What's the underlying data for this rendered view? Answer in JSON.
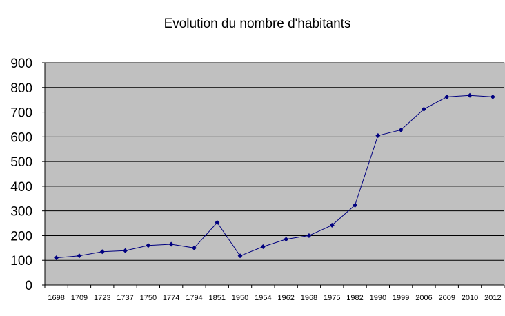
{
  "chart_data": {
    "type": "line",
    "title": "Evolution du nombre d'habitants",
    "xlabel": "",
    "ylabel": "",
    "ylim": [
      0,
      900
    ],
    "yticks": [
      "0",
      "100",
      "200",
      "300",
      "400",
      "500",
      "600",
      "700",
      "800",
      "900"
    ],
    "grid": true,
    "legend": "none",
    "categories": [
      "1698",
      "1709",
      "1723",
      "1737",
      "1750",
      "1774",
      "1794",
      "1851",
      "1950",
      "1954",
      "1962",
      "1968",
      "1975",
      "1982",
      "1990",
      "1999",
      "2006",
      "2009",
      "2010",
      "2012"
    ],
    "series": [
      {
        "values": [
          110,
          118,
          135,
          139,
          160,
          165,
          150,
          253,
          118,
          155,
          185,
          200,
          242,
          323,
          605,
          628,
          712,
          762,
          768,
          762
        ]
      }
    ],
    "colors": {
      "plot_background": "#c0c0c0",
      "line": "#000080",
      "marker": "#000080",
      "gridline": "#000000"
    }
  }
}
